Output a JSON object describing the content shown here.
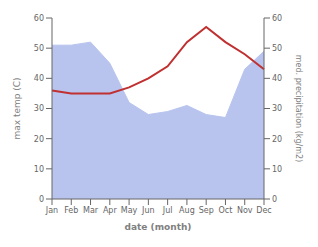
{
  "chart_data": {
    "type": "line",
    "categories": [
      "Jan",
      "Feb",
      "Mar",
      "Apr",
      "May",
      "Jun",
      "Jul",
      "Aug",
      "Sep",
      "Oct",
      "Nov",
      "Dec"
    ],
    "xlabel": "date (month)",
    "ylabel": "max temp (C)",
    "y2label": "med. precipitation (kg/m2)",
    "ylim": [
      0,
      60
    ],
    "yticks": [
      0,
      10,
      20,
      30,
      40,
      50,
      60
    ],
    "y2lim": [
      0,
      60
    ],
    "y2ticks": [
      0,
      10,
      20,
      30,
      40,
      50,
      60
    ],
    "grid": false,
    "series": [
      {
        "type": "area",
        "axis": "y2",
        "color": "#b8c4ee",
        "values": [
          51,
          51,
          52,
          45,
          32,
          28,
          29,
          31,
          28,
          27,
          43,
          49
        ]
      },
      {
        "type": "line",
        "color": "#c03030",
        "values": [
          36,
          35,
          35,
          35,
          37,
          40,
          44,
          52,
          57,
          52,
          48,
          43
        ]
      }
    ]
  }
}
